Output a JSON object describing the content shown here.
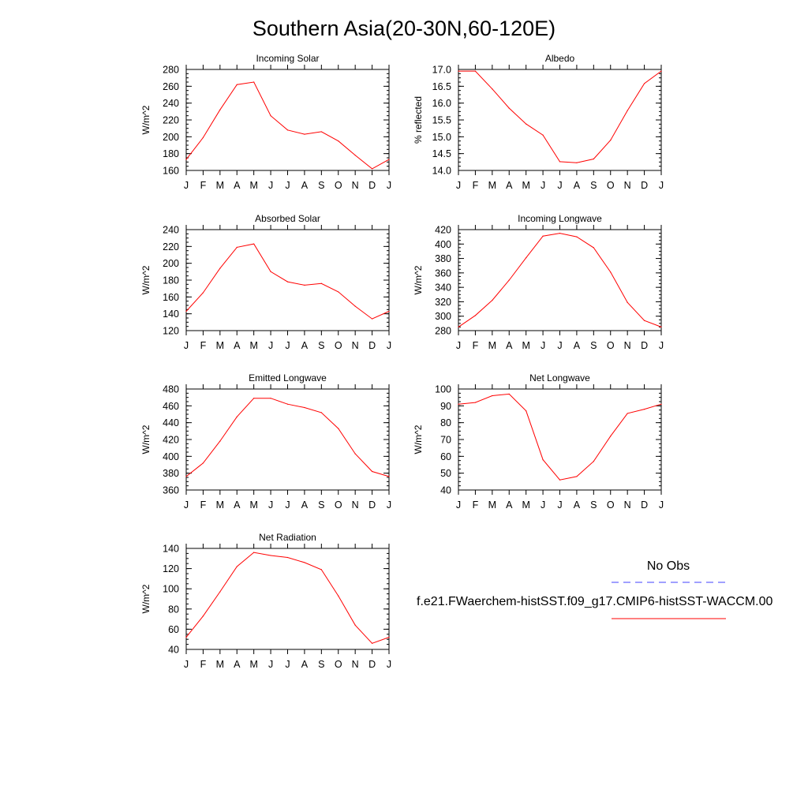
{
  "title": "Southern Asia(20-30N,60-120E)",
  "legend": {
    "obs_label": "No Obs",
    "model_label": "f.e21.FWaerchem-histSST.f09_g17.CMIP6-histSST-WACCM.00",
    "obs_color": "#4040ff",
    "model_color": "#ff0000"
  },
  "chart_data": [
    {
      "type": "line",
      "title": "Incoming Solar",
      "ylabel": "W/m^2",
      "categories": [
        "J",
        "F",
        "M",
        "A",
        "M",
        "J",
        "J",
        "A",
        "S",
        "O",
        "N",
        "D",
        "J"
      ],
      "ylim": [
        160,
        280
      ],
      "yticks": [
        160,
        180,
        200,
        220,
        240,
        260,
        280
      ],
      "ytick_labels": [
        "160",
        "180",
        "200",
        "220",
        "240",
        "260",
        "280"
      ],
      "series": [
        {
          "values": [
            173,
            199,
            232,
            262,
            265,
            225,
            208,
            203,
            206,
            195,
            178,
            162,
            173
          ]
        }
      ]
    },
    {
      "type": "line",
      "title": "Albedo",
      "ylabel": "% reflected",
      "categories": [
        "J",
        "F",
        "M",
        "A",
        "M",
        "J",
        "J",
        "A",
        "S",
        "O",
        "N",
        "D",
        "J"
      ],
      "ylim": [
        14.0,
        17.0
      ],
      "yticks": [
        14.0,
        14.5,
        15.0,
        15.5,
        16.0,
        16.5,
        17.0
      ],
      "ytick_labels": [
        "14.0",
        "14.5",
        "15.0",
        "15.5",
        "16.0",
        "16.5",
        "17.0"
      ],
      "series": [
        {
          "values": [
            16.95,
            16.95,
            16.42,
            15.85,
            15.38,
            15.05,
            14.26,
            14.23,
            14.34,
            14.9,
            15.78,
            16.58,
            16.95
          ]
        }
      ]
    },
    {
      "type": "line",
      "title": "Absorbed Solar",
      "ylabel": "W/m^2",
      "categories": [
        "J",
        "F",
        "M",
        "A",
        "M",
        "J",
        "J",
        "A",
        "S",
        "O",
        "N",
        "D",
        "J"
      ],
      "ylim": [
        120,
        240
      ],
      "yticks": [
        120,
        140,
        160,
        180,
        200,
        220,
        240
      ],
      "ytick_labels": [
        "120",
        "140",
        "160",
        "180",
        "200",
        "220",
        "240"
      ],
      "series": [
        {
          "values": [
            143,
            165,
            194,
            219,
            223,
            190,
            178,
            174,
            176,
            166,
            149,
            134,
            143
          ]
        }
      ]
    },
    {
      "type": "line",
      "title": "Incoming Longwave",
      "ylabel": "W/m^2",
      "categories": [
        "J",
        "F",
        "M",
        "A",
        "M",
        "J",
        "J",
        "A",
        "S",
        "O",
        "N",
        "D",
        "J"
      ],
      "ylim": [
        280,
        420
      ],
      "yticks": [
        280,
        300,
        320,
        340,
        360,
        380,
        400,
        420
      ],
      "ytick_labels": [
        "280",
        "300",
        "320",
        "340",
        "360",
        "380",
        "400",
        "420"
      ],
      "series": [
        {
          "values": [
            285,
            301,
            322,
            350,
            381,
            411,
            415,
            410,
            395,
            361,
            319,
            294,
            285
          ]
        }
      ]
    },
    {
      "type": "line",
      "title": "Emitted Longwave",
      "ylabel": "W/m^2",
      "categories": [
        "J",
        "F",
        "M",
        "A",
        "M",
        "J",
        "J",
        "A",
        "S",
        "O",
        "N",
        "D",
        "J"
      ],
      "ylim": [
        360,
        480
      ],
      "yticks": [
        360,
        380,
        400,
        420,
        440,
        460,
        480
      ],
      "ytick_labels": [
        "360",
        "380",
        "400",
        "420",
        "440",
        "460",
        "480"
      ],
      "series": [
        {
          "values": [
            376,
            392,
            418,
            447,
            469,
            469,
            462,
            458,
            452,
            433,
            403,
            382,
            376
          ]
        }
      ]
    },
    {
      "type": "line",
      "title": "Net Longwave",
      "ylabel": "W/m^2",
      "categories": [
        "J",
        "F",
        "M",
        "A",
        "M",
        "J",
        "J",
        "A",
        "S",
        "O",
        "N",
        "D",
        "J"
      ],
      "ylim": [
        40,
        100
      ],
      "yticks": [
        40,
        50,
        60,
        70,
        80,
        90,
        100
      ],
      "ytick_labels": [
        "40",
        "50",
        "60",
        "70",
        "80",
        "90",
        "100"
      ],
      "series": [
        {
          "values": [
            91,
            92,
            96,
            97,
            87,
            58,
            46,
            48,
            57,
            72,
            85.5,
            88,
            91
          ]
        }
      ]
    },
    {
      "type": "line",
      "title": "Net Radiation",
      "ylabel": "W/m^2",
      "categories": [
        "J",
        "F",
        "M",
        "A",
        "M",
        "J",
        "J",
        "A",
        "S",
        "O",
        "N",
        "D",
        "J"
      ],
      "ylim": [
        40,
        140
      ],
      "yticks": [
        40,
        60,
        80,
        100,
        120,
        140
      ],
      "ytick_labels": [
        "40",
        "60",
        "80",
        "100",
        "120",
        "140"
      ],
      "series": [
        {
          "values": [
            52,
            73,
            97,
            122,
            136,
            133,
            131,
            126,
            119,
            93,
            64,
            46,
            52
          ]
        }
      ]
    }
  ]
}
